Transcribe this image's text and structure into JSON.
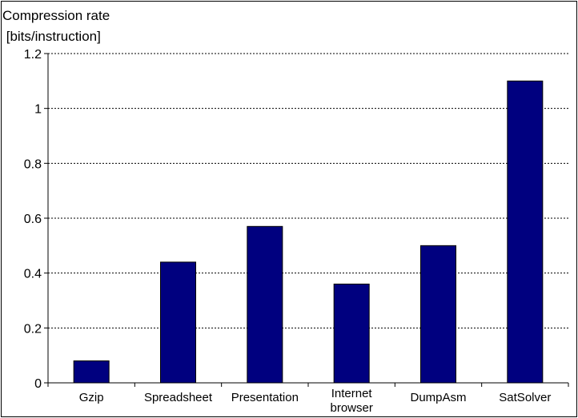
{
  "chart_data": {
    "type": "bar",
    "ylabel_lines": [
      "Compression rate",
      " [bits/instruction]"
    ],
    "categories": [
      [
        "Gzip"
      ],
      [
        "Spreadsheet"
      ],
      [
        "Presentation"
      ],
      [
        "Internet",
        "browser"
      ],
      [
        "DumpAsm"
      ],
      [
        "SatSolver"
      ]
    ],
    "values": [
      0.08,
      0.44,
      0.57,
      0.36,
      0.5,
      1.1
    ],
    "yticks": [
      "0",
      "0.2",
      "0.4",
      "0.6",
      "0.8",
      "1",
      "1.2"
    ],
    "ylim": [
      0,
      1.2
    ],
    "grid": "horizontal dashed",
    "bar_color": "#00007f",
    "legend": "none"
  }
}
